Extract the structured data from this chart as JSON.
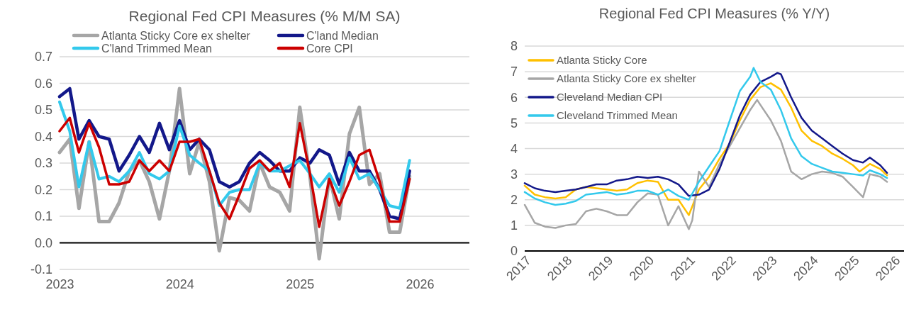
{
  "chart_data": [
    {
      "type": "line",
      "title": "Regional Fed CPI Measures (% M/M SA)",
      "x": [
        "2023-01",
        "2023-02",
        "2023-03",
        "2023-04",
        "2023-05",
        "2023-06",
        "2023-07",
        "2023-08",
        "2023-09",
        "2023-10",
        "2023-11",
        "2023-12",
        "2024-01",
        "2024-02",
        "2024-03",
        "2024-04",
        "2024-05",
        "2024-06",
        "2024-07",
        "2024-08",
        "2024-09",
        "2024-10",
        "2024-11",
        "2024-12",
        "2025-01",
        "2025-02",
        "2025-03",
        "2025-04",
        "2025-05",
        "2025-06",
        "2025-07",
        "2025-08",
        "2025-09",
        "2025-10",
        "2025-11",
        "2025-12"
      ],
      "series": [
        {
          "name": "Atlanta Sticky Core ex shelter",
          "color": "#a6a6a6",
          "values": [
            0.34,
            0.39,
            0.13,
            0.38,
            0.08,
            0.08,
            0.15,
            0.27,
            0.31,
            0.23,
            0.09,
            0.27,
            0.58,
            0.26,
            0.38,
            0.23,
            -0.03,
            0.17,
            0.16,
            0.12,
            0.3,
            0.21,
            0.19,
            0.12,
            0.51,
            0.25,
            -0.06,
            0.25,
            0.09,
            0.41,
            0.51,
            0.22,
            0.26,
            0.04,
            0.04,
            0.25
          ]
        },
        {
          "name": "C'land Median",
          "color": "#13188a",
          "values": [
            0.55,
            0.58,
            0.39,
            0.46,
            0.4,
            0.39,
            0.27,
            0.33,
            0.4,
            0.34,
            0.45,
            0.35,
            0.46,
            0.35,
            0.39,
            0.35,
            0.23,
            0.21,
            0.23,
            0.3,
            0.34,
            0.31,
            0.27,
            0.27,
            0.32,
            0.3,
            0.35,
            0.33,
            0.22,
            0.34,
            0.27,
            0.27,
            0.2,
            0.1,
            0.09,
            0.27
          ]
        },
        {
          "name": "C'land Trimmed Mean",
          "color": "#33c9ec",
          "values": [
            0.53,
            0.42,
            0.21,
            0.38,
            0.24,
            0.25,
            0.23,
            0.27,
            0.34,
            0.26,
            0.24,
            0.27,
            0.44,
            0.33,
            0.3,
            0.27,
            0.14,
            0.19,
            0.2,
            0.2,
            0.3,
            0.27,
            0.27,
            0.29,
            0.31,
            0.26,
            0.21,
            0.26,
            0.19,
            0.32,
            0.24,
            0.26,
            0.2,
            0.14,
            0.13,
            0.31
          ]
        },
        {
          "name": "Core CPI",
          "color": "#cc0000",
          "values": [
            0.42,
            0.47,
            0.34,
            0.45,
            0.36,
            0.22,
            0.22,
            0.23,
            0.31,
            0.27,
            0.31,
            0.27,
            0.38,
            0.38,
            0.39,
            0.27,
            0.15,
            0.09,
            0.18,
            0.28,
            0.31,
            0.27,
            0.3,
            0.21,
            0.45,
            0.26,
            0.06,
            0.24,
            0.14,
            0.23,
            0.33,
            0.35,
            0.23,
            0.08,
            0.08,
            0.24
          ]
        }
      ],
      "xlim": [
        "2023-01",
        "2026-06"
      ],
      "xticks": [
        {
          "value": "2023-01",
          "label": "2023"
        },
        {
          "value": "2024-01",
          "label": "2024"
        },
        {
          "value": "2025-01",
          "label": "2025"
        },
        {
          "value": "2026-01",
          "label": "2026"
        }
      ],
      "ylim": [
        -0.1,
        0.7
      ],
      "yticks": [
        -0.1,
        {
          "value": 0,
          "label": "0.0"
        },
        0.1,
        0.2,
        0.3,
        0.4,
        0.5,
        0.6,
        0.7
      ],
      "grid": "y",
      "legend": "top",
      "line_style": "solid"
    },
    {
      "type": "line",
      "title": "Regional Fed CPI Measures (% Y/Y)",
      "series": [
        {
          "name": "Atlanta Sticky Core",
          "color": "#ffc000",
          "x": [
            "2017-01",
            "2017-04",
            "2017-07",
            "2017-10",
            "2018-01",
            "2018-04",
            "2018-07",
            "2018-10",
            "2019-01",
            "2019-04",
            "2019-07",
            "2019-10",
            "2020-01",
            "2020-04",
            "2020-07",
            "2020-10",
            "2021-01",
            "2021-04",
            "2021-07",
            "2021-10",
            "2022-01",
            "2022-04",
            "2022-07",
            "2022-10",
            "2023-01",
            "2023-04",
            "2023-07",
            "2023-10",
            "2024-01",
            "2024-04",
            "2024-07",
            "2024-10",
            "2025-01",
            "2025-03",
            "2025-06",
            "2025-09",
            "2025-11"
          ],
          "values": [
            2.55,
            2.2,
            2.1,
            2.05,
            2.1,
            2.4,
            2.5,
            2.45,
            2.4,
            2.35,
            2.4,
            2.65,
            2.75,
            2.7,
            2.0,
            2.0,
            1.4,
            2.4,
            2.9,
            3.6,
            4.2,
            5.1,
            5.9,
            6.4,
            6.55,
            6.3,
            5.6,
            4.7,
            4.3,
            4.1,
            3.8,
            3.6,
            3.35,
            3.1,
            3.4,
            3.2,
            2.95
          ]
        },
        {
          "name": "Atlanta Sticky Core ex shelter",
          "color": "#a6a6a6",
          "x": [
            "2017-01",
            "2017-04",
            "2017-07",
            "2017-10",
            "2018-01",
            "2018-04",
            "2018-07",
            "2018-10",
            "2019-01",
            "2019-04",
            "2019-07",
            "2019-10",
            "2020-01",
            "2020-04",
            "2020-07",
            "2020-10",
            "2021-01",
            "2021-02",
            "2021-04",
            "2021-07",
            "2021-10",
            "2022-01",
            "2022-04",
            "2022-07",
            "2022-09",
            "2022-10",
            "2023-01",
            "2023-04",
            "2023-07",
            "2023-10",
            "2024-01",
            "2024-04",
            "2024-07",
            "2024-10",
            "2025-01",
            "2025-04",
            "2025-06",
            "2025-09",
            "2025-11"
          ],
          "values": [
            1.8,
            1.1,
            0.95,
            0.9,
            1.0,
            1.05,
            1.55,
            1.65,
            1.55,
            1.4,
            1.4,
            1.9,
            2.25,
            2.2,
            1.0,
            1.75,
            0.85,
            1.2,
            3.1,
            2.5,
            3.4,
            4.1,
            4.8,
            5.5,
            5.9,
            5.7,
            5.1,
            4.3,
            3.1,
            2.8,
            3.0,
            3.1,
            3.05,
            2.9,
            2.5,
            2.1,
            3.0,
            2.9,
            2.7
          ]
        },
        {
          "name": "Cleveland Median CPI",
          "color": "#13188a",
          "x": [
            "2017-01",
            "2017-04",
            "2017-07",
            "2017-10",
            "2018-01",
            "2018-04",
            "2018-07",
            "2018-10",
            "2019-01",
            "2019-04",
            "2019-07",
            "2019-10",
            "2020-01",
            "2020-04",
            "2020-07",
            "2020-10",
            "2021-01",
            "2021-04",
            "2021-07",
            "2021-10",
            "2022-01",
            "2022-04",
            "2022-07",
            "2022-10",
            "2023-01",
            "2023-03",
            "2023-04",
            "2023-07",
            "2023-10",
            "2024-01",
            "2024-04",
            "2024-07",
            "2024-10",
            "2025-01",
            "2025-04",
            "2025-06",
            "2025-09",
            "2025-11"
          ],
          "values": [
            2.65,
            2.45,
            2.35,
            2.3,
            2.35,
            2.4,
            2.5,
            2.6,
            2.6,
            2.75,
            2.8,
            2.9,
            2.85,
            2.9,
            2.8,
            2.6,
            2.15,
            2.2,
            2.4,
            3.2,
            4.25,
            5.3,
            6.1,
            6.6,
            6.8,
            6.95,
            6.9,
            6.0,
            5.2,
            4.7,
            4.4,
            4.1,
            3.8,
            3.55,
            3.45,
            3.65,
            3.35,
            3.05
          ]
        },
        {
          "name": "Cleveland Trimmed Mean",
          "color": "#33c9ec",
          "x": [
            "2017-01",
            "2017-04",
            "2017-07",
            "2017-10",
            "2018-01",
            "2018-04",
            "2018-07",
            "2018-10",
            "2019-01",
            "2019-04",
            "2019-07",
            "2019-10",
            "2020-01",
            "2020-04",
            "2020-07",
            "2020-10",
            "2021-01",
            "2021-04",
            "2021-07",
            "2021-10",
            "2022-01",
            "2022-04",
            "2022-07",
            "2022-08",
            "2022-10",
            "2023-01",
            "2023-04",
            "2023-07",
            "2023-10",
            "2024-01",
            "2024-04",
            "2024-07",
            "2024-10",
            "2025-01",
            "2025-04",
            "2025-06",
            "2025-09",
            "2025-11"
          ],
          "values": [
            2.3,
            2.05,
            1.9,
            1.8,
            1.85,
            1.95,
            2.2,
            2.25,
            2.3,
            2.2,
            2.25,
            2.35,
            2.35,
            2.2,
            2.4,
            2.15,
            2.0,
            2.7,
            3.3,
            3.9,
            5.1,
            6.25,
            6.8,
            7.15,
            6.6,
            6.3,
            5.5,
            4.4,
            3.7,
            3.4,
            3.25,
            3.1,
            3.05,
            3.0,
            2.95,
            3.15,
            3.0,
            2.85
          ]
        }
      ],
      "xlim": [
        "2017-01",
        "2026-04"
      ],
      "xticks": [
        {
          "value": "2017-01",
          "label": "2017"
        },
        {
          "value": "2018-01",
          "label": "2018"
        },
        {
          "value": "2019-01",
          "label": "2019"
        },
        {
          "value": "2020-01",
          "label": "2020"
        },
        {
          "value": "2021-01",
          "label": "2021"
        },
        {
          "value": "2022-01",
          "label": "2022"
        },
        {
          "value": "2023-01",
          "label": "2023"
        },
        {
          "value": "2024-01",
          "label": "2024"
        },
        {
          "value": "2025-01",
          "label": "2025"
        },
        {
          "value": "2026-01",
          "label": "2026"
        }
      ],
      "ylim": [
        0,
        8
      ],
      "yticks": [
        0,
        1,
        2,
        3,
        4,
        5,
        6,
        7,
        8
      ],
      "grid": "y",
      "legend": "top left",
      "line_style": "solid"
    }
  ]
}
